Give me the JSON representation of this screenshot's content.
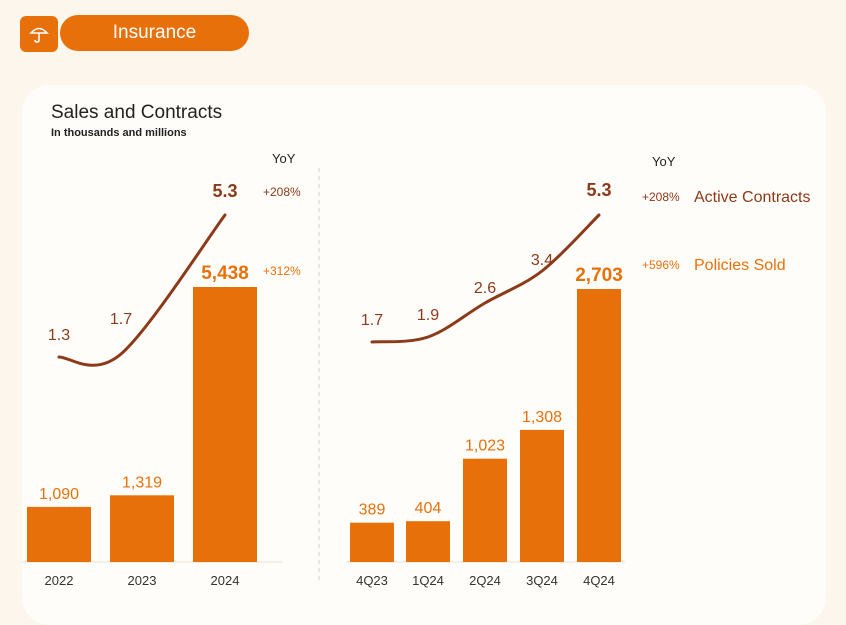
{
  "section": {
    "title": "Insurance",
    "icon": "umbrella-icon"
  },
  "card": {
    "title": "Sales and Contracts",
    "subtitle": "In thousands and  millions"
  },
  "colors": {
    "bar": "#e8700a",
    "line": "#8b3a1a",
    "accent": "#e8700a"
  },
  "yoy_header_left": "YoY",
  "yoy_header_right": "YoY",
  "left_yoy": {
    "contracts": "+208%",
    "policies": "+312%"
  },
  "legend": [
    {
      "pct": "+208%",
      "label": "Active Contracts"
    },
    {
      "pct": "+596%",
      "label": "Policies Sold"
    }
  ],
  "chart_data": [
    {
      "type": "bar",
      "categories": [
        "2022",
        "2023",
        "2024"
      ],
      "series": [
        {
          "name": "Policies Sold",
          "values": [
            1090,
            1319,
            5438
          ],
          "labels": [
            "1,090",
            "1,319",
            "5,438"
          ]
        },
        {
          "name": "Active Contracts",
          "type": "line",
          "values": [
            1.3,
            1.7,
            5.3
          ],
          "labels": [
            "1.3",
            "1.7",
            "5.3"
          ]
        }
      ]
    },
    {
      "type": "bar",
      "categories": [
        "4Q23",
        "1Q24",
        "2Q24",
        "3Q24",
        "4Q24"
      ],
      "series": [
        {
          "name": "Policies Sold",
          "values": [
            389,
            404,
            1023,
            1308,
            2703
          ],
          "labels": [
            "389",
            "404",
            "1,023",
            "1,308",
            "2,703"
          ]
        },
        {
          "name": "Active Contracts",
          "type": "line",
          "values": [
            1.7,
            1.9,
            2.6,
            3.4,
            5.3
          ],
          "labels": [
            "1.7",
            "1.9",
            "2.6",
            "3.4",
            "5.3"
          ]
        }
      ]
    }
  ]
}
